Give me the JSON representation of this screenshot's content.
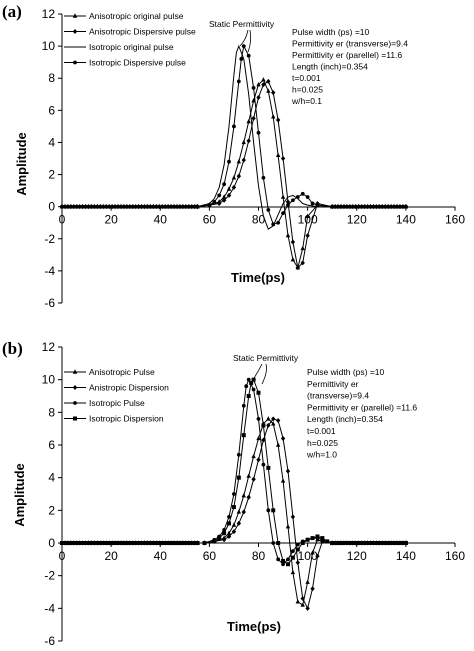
{
  "chart_data": [
    {
      "type": "line",
      "panel_label": "(a)",
      "xlabel": "Time(ps)",
      "ylabel": "Amplitude",
      "xlim": [
        0,
        160
      ],
      "ylim": [
        -6,
        12
      ],
      "xticks": [
        0,
        20,
        40,
        60,
        80,
        100,
        120,
        140,
        160
      ],
      "yticks": [
        -6,
        -4,
        -2,
        0,
        2,
        4,
        6,
        8,
        10,
        12
      ],
      "legend_position": "top-left",
      "annotation": "Static Permittivity",
      "info_lines": [
        "Pulse width (ps) =10",
        "Permittivity er (transverse)=9.4",
        "Permittivity er (parellel) =11.6",
        "Length (inch)=0.354",
        "t=0.001",
        "h=0.025",
        "w/h=0.1"
      ],
      "series": [
        {
          "name": "Anisotropic original pulse",
          "marker": "triangle",
          "x": [
            0,
            55,
            60,
            64,
            66,
            68,
            70,
            72,
            74,
            76,
            78,
            80,
            82,
            84,
            86,
            88,
            90,
            92,
            94,
            96,
            98,
            100,
            104,
            110,
            140
          ],
          "y": [
            0,
            0,
            0.1,
            0.3,
            0.6,
            1.1,
            1.8,
            2.8,
            4.0,
            5.3,
            6.6,
            7.6,
            7.9,
            7.2,
            5.6,
            3.2,
            0.6,
            -1.8,
            -3.3,
            -3.8,
            -2.6,
            -0.6,
            0.1,
            0,
            0
          ]
        },
        {
          "name": "Anisotropic Dispersive pulse",
          "marker": "diamond",
          "x": [
            0,
            55,
            60,
            64,
            66,
            68,
            70,
            72,
            74,
            76,
            78,
            80,
            82,
            84,
            86,
            88,
            90,
            92,
            94,
            96,
            98,
            100,
            104,
            110,
            140
          ],
          "y": [
            0,
            0,
            0.1,
            0.2,
            0.4,
            0.7,
            1.2,
            1.9,
            2.9,
            4.1,
            5.5,
            6.8,
            7.6,
            7.8,
            7.1,
            5.4,
            3.0,
            0.3,
            -2.2,
            -3.8,
            -3.5,
            -1.8,
            0.2,
            0,
            0
          ]
        },
        {
          "name": "Isotropic original pulse",
          "marker": "none",
          "x": [
            0,
            55,
            60,
            62,
            64,
            66,
            68,
            70,
            71,
            72,
            74,
            76,
            78,
            80,
            82,
            84,
            86,
            88,
            90,
            92,
            94,
            96,
            98,
            100,
            104,
            110,
            140
          ],
          "y": [
            0,
            0,
            0.2,
            0.5,
            1.2,
            2.6,
            5.0,
            8.2,
            9.6,
            10.0,
            9.2,
            7.0,
            4.0,
            1.3,
            -0.6,
            -1.4,
            -1.2,
            -0.5,
            0.2,
            0.6,
            0.7,
            0.5,
            0.2,
            0.1,
            0,
            0,
            0
          ]
        },
        {
          "name": "Isotropic Dispersive pulse",
          "marker": "circle",
          "x": [
            0,
            55,
            60,
            62,
            64,
            66,
            68,
            70,
            72,
            73,
            74,
            76,
            78,
            80,
            82,
            84,
            86,
            88,
            90,
            92,
            94,
            96,
            98,
            100,
            102,
            104,
            110,
            140
          ],
          "y": [
            0,
            0,
            0.1,
            0.3,
            0.7,
            1.4,
            2.8,
            5.0,
            7.8,
            9.2,
            10.0,
            9.4,
            7.4,
            4.6,
            1.8,
            -0.2,
            -1.1,
            -1.0,
            -0.4,
            0.1,
            0.4,
            0.6,
            0.8,
            0.6,
            0.2,
            0.1,
            0,
            0
          ]
        }
      ]
    },
    {
      "type": "line",
      "panel_label": "(b)",
      "xlabel": "Time(ps)",
      "ylabel": "Amplitude",
      "xlim": [
        0,
        160
      ],
      "ylim": [
        -6,
        12
      ],
      "xticks": [
        0,
        20,
        40,
        60,
        80,
        100,
        120,
        140,
        160
      ],
      "yticks": [
        -6,
        -4,
        -2,
        0,
        2,
        4,
        6,
        8,
        10,
        12
      ],
      "legend_position": "top-left",
      "annotation": "Static Permittivity",
      "info_lines": [
        "Pulse width (ps) =10",
        "Permittivity er",
        "(transverse)=9.4",
        "Permittivity er (parellel) =11.6",
        "Length (inch)=0.354",
        "t=0.001",
        "h=0.025",
        "w/h=1.0"
      ],
      "series": [
        {
          "name": "Anisotropic Pulse",
          "marker": "triangle",
          "x": [
            0,
            58,
            62,
            66,
            68,
            70,
            72,
            74,
            76,
            78,
            80,
            82,
            84,
            86,
            88,
            90,
            92,
            94,
            96,
            98,
            100,
            102,
            104,
            106,
            110,
            140
          ],
          "y": [
            0,
            0,
            0.1,
            0.3,
            0.6,
            1.1,
            1.9,
            2.9,
            4.1,
            5.3,
            6.4,
            7.3,
            7.6,
            7.3,
            6.0,
            3.8,
            1.0,
            -1.8,
            -3.6,
            -3.8,
            -2.4,
            -0.6,
            0.2,
            0.1,
            0,
            0
          ]
        },
        {
          "name": "Anistropic Dispersion",
          "marker": "diamond",
          "x": [
            0,
            58,
            62,
            66,
            68,
            70,
            72,
            74,
            76,
            78,
            80,
            82,
            84,
            86,
            88,
            90,
            92,
            94,
            96,
            98,
            100,
            102,
            104,
            106,
            110,
            140
          ],
          "y": [
            0,
            0,
            0.1,
            0.2,
            0.4,
            0.7,
            1.2,
            1.9,
            2.8,
            3.9,
            5.1,
            6.3,
            7.2,
            7.6,
            7.5,
            6.4,
            4.4,
            1.6,
            -1.2,
            -3.4,
            -4.0,
            -2.8,
            -0.8,
            0.1,
            0,
            0
          ]
        },
        {
          "name": "Isotropic Pulse",
          "marker": "circle",
          "x": [
            0,
            58,
            62,
            64,
            66,
            68,
            70,
            72,
            74,
            75,
            76,
            78,
            80,
            82,
            84,
            86,
            88,
            90,
            92,
            94,
            96,
            98,
            100,
            102,
            104,
            106,
            108,
            110,
            140
          ],
          "y": [
            0,
            0,
            0.2,
            0.4,
            0.8,
            1.6,
            3.0,
            5.4,
            8.4,
            9.6,
            10.0,
            9.4,
            7.6,
            4.8,
            2.0,
            0,
            -1.0,
            -1.3,
            -1.0,
            -0.5,
            -0.1,
            0.1,
            0.2,
            0.3,
            0.3,
            0.2,
            0.1,
            0,
            0
          ]
        },
        {
          "name": "Isotropic Dispersion",
          "marker": "square",
          "x": [
            0,
            58,
            62,
            64,
            66,
            68,
            70,
            72,
            74,
            76,
            77,
            78,
            80,
            82,
            84,
            86,
            88,
            90,
            92,
            94,
            96,
            98,
            100,
            102,
            104,
            106,
            108,
            110,
            140
          ],
          "y": [
            0,
            0,
            0.1,
            0.3,
            0.6,
            1.2,
            2.2,
            4.0,
            6.6,
            9.0,
            9.8,
            10.0,
            9.2,
            7.2,
            4.6,
            2.0,
            0,
            -1.1,
            -1.3,
            -0.9,
            -0.4,
            0,
            0.2,
            0.3,
            0.4,
            0.3,
            0.1,
            0,
            0
          ]
        }
      ]
    }
  ]
}
